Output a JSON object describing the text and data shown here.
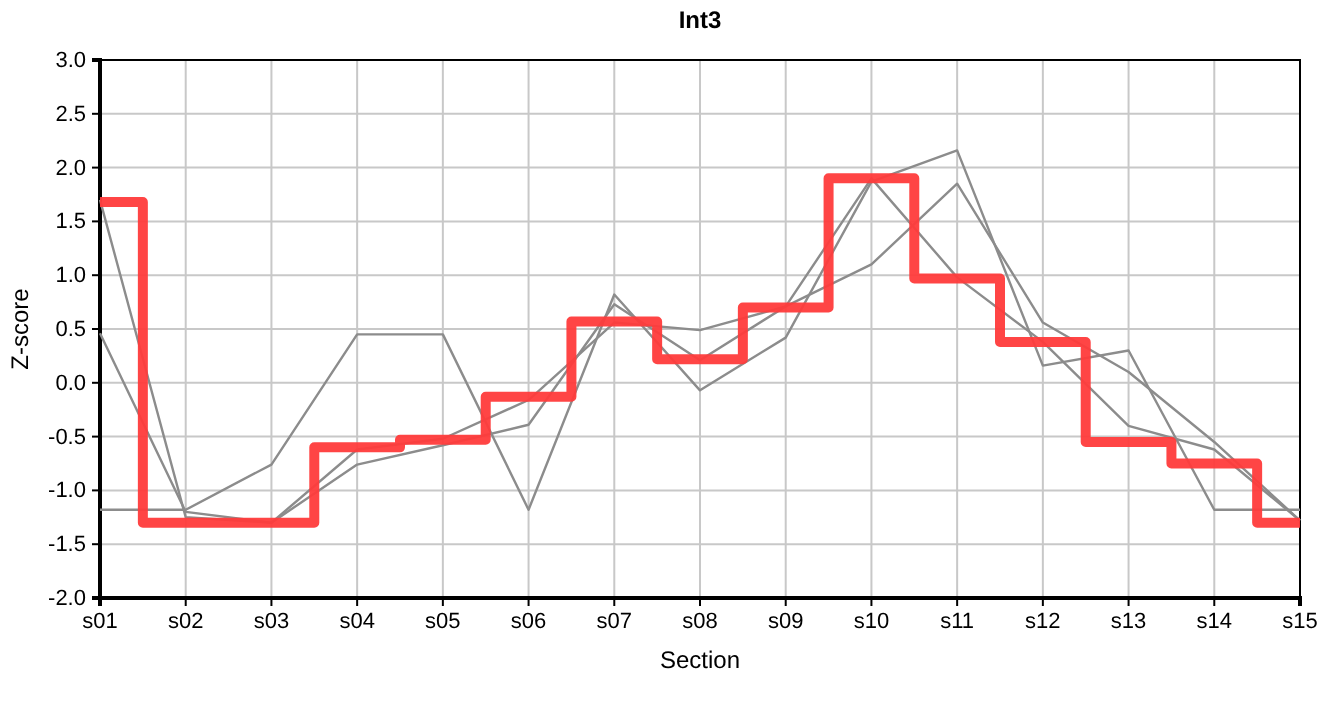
{
  "chart_data": {
    "type": "line",
    "title": "Int3",
    "xlabel": "Section",
    "ylabel": "Z-score",
    "categories": [
      "s01",
      "s02",
      "s03",
      "s04",
      "s05",
      "s06",
      "s07",
      "s08",
      "s09",
      "s10",
      "s11",
      "s12",
      "s13",
      "s14",
      "s15"
    ],
    "ylim": [
      -2,
      3
    ],
    "yticks": [
      {
        "value": -2,
        "label": "-2.0"
      },
      {
        "value": -1.5,
        "label": "-1.5"
      },
      {
        "value": -1,
        "label": "-1.0"
      },
      {
        "value": -0.5,
        "label": "-0.5"
      },
      {
        "value": 0,
        "label": "0.0"
      },
      {
        "value": 0.5,
        "label": "0.5"
      },
      {
        "value": 1,
        "label": "1.0"
      },
      {
        "value": 1.5,
        "label": "1.5"
      },
      {
        "value": 2,
        "label": "2.0"
      },
      {
        "value": 2.5,
        "label": "2.5"
      },
      {
        "value": 3,
        "label": "3.0"
      }
    ],
    "grid": true,
    "marker": "none",
    "line_style": "solid",
    "series": [
      {
        "color": "#8c8c8c",
        "values": [
          1.7,
          -1.25,
          -1.3,
          -0.62,
          -0.52,
          -0.16,
          0.56,
          0.49,
          0.71,
          1.1,
          1.85,
          0.56,
          0.1,
          -0.55,
          -1.28
        ]
      },
      {
        "color": "#8c8c8c",
        "values": [
          0.46,
          -1.2,
          -1.3,
          -0.76,
          -0.58,
          -0.39,
          0.73,
          0.21,
          0.71,
          1.9,
          0.98,
          0.38,
          -0.4,
          -0.62,
          -1.28
        ]
      },
      {
        "color": "#8c8c8c",
        "values": [
          -1.18,
          -1.18,
          -0.76,
          0.45,
          0.45,
          -1.18,
          0.82,
          -0.07,
          0.42,
          1.87,
          2.16,
          0.16,
          0.3,
          -1.18,
          -1.18
        ]
      },
      {
        "type": "step",
        "color": "#ff3b3b",
        "values": [
          1.68,
          -1.3,
          -1.3,
          -0.6,
          -0.53,
          -0.13,
          0.57,
          0.22,
          0.7,
          1.9,
          0.97,
          0.38,
          -0.55,
          -0.75,
          -1.3
        ]
      }
    ]
  }
}
